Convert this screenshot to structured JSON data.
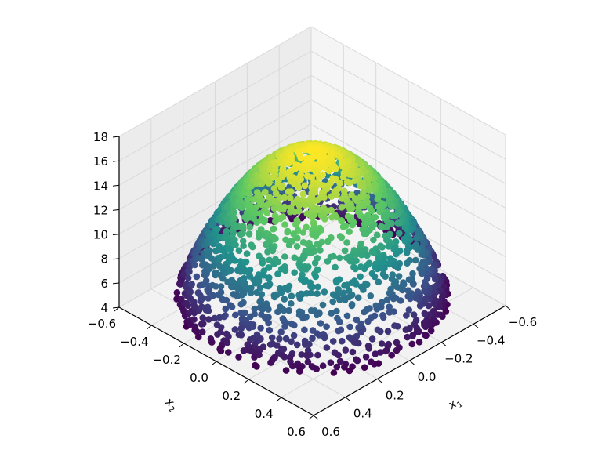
{
  "chart_data": {
    "type": "scatter3d",
    "description_shape": "paraboloid cap surface sampled by points",
    "x1": {
      "label_base": "x",
      "label_sub": "1",
      "ticks": [
        -0.6,
        -0.4,
        -0.2,
        0.0,
        0.2,
        0.4,
        0.6
      ],
      "tick_labels": [
        "−0.6",
        "−0.4",
        "−0.2",
        "0.0",
        "0.2",
        "0.4",
        "0.6"
      ],
      "lim": [
        -0.6,
        0.6
      ]
    },
    "x2": {
      "label_base": "x",
      "label_sub": "2",
      "ticks": [
        -0.6,
        -0.4,
        -0.2,
        0.0,
        0.2,
        0.4,
        0.6
      ],
      "tick_labels": [
        "−0.6",
        "−0.4",
        "−0.2",
        "0.0",
        "0.2",
        "0.4",
        "0.6"
      ],
      "lim": [
        -0.6,
        0.6
      ]
    },
    "z": {
      "label": "",
      "ticks": [
        4,
        6,
        8,
        10,
        12,
        14,
        16,
        18
      ],
      "tick_labels": [
        "4",
        "6",
        "8",
        "10",
        "12",
        "14",
        "16",
        "18"
      ],
      "lim": [
        4,
        18
      ]
    },
    "surface_model": {
      "peak_value": 16.5,
      "peak_at": [
        0.0,
        0.0
      ],
      "value_at_radius_0_6": 4.8
    },
    "colormap": "viridis",
    "colormap_stops": [
      "#440154",
      "#3b528b",
      "#21918c",
      "#5ec962",
      "#fde725"
    ],
    "grid": true,
    "pane_color": "#f2f2f2",
    "grid_color": "#d9d9d9"
  }
}
